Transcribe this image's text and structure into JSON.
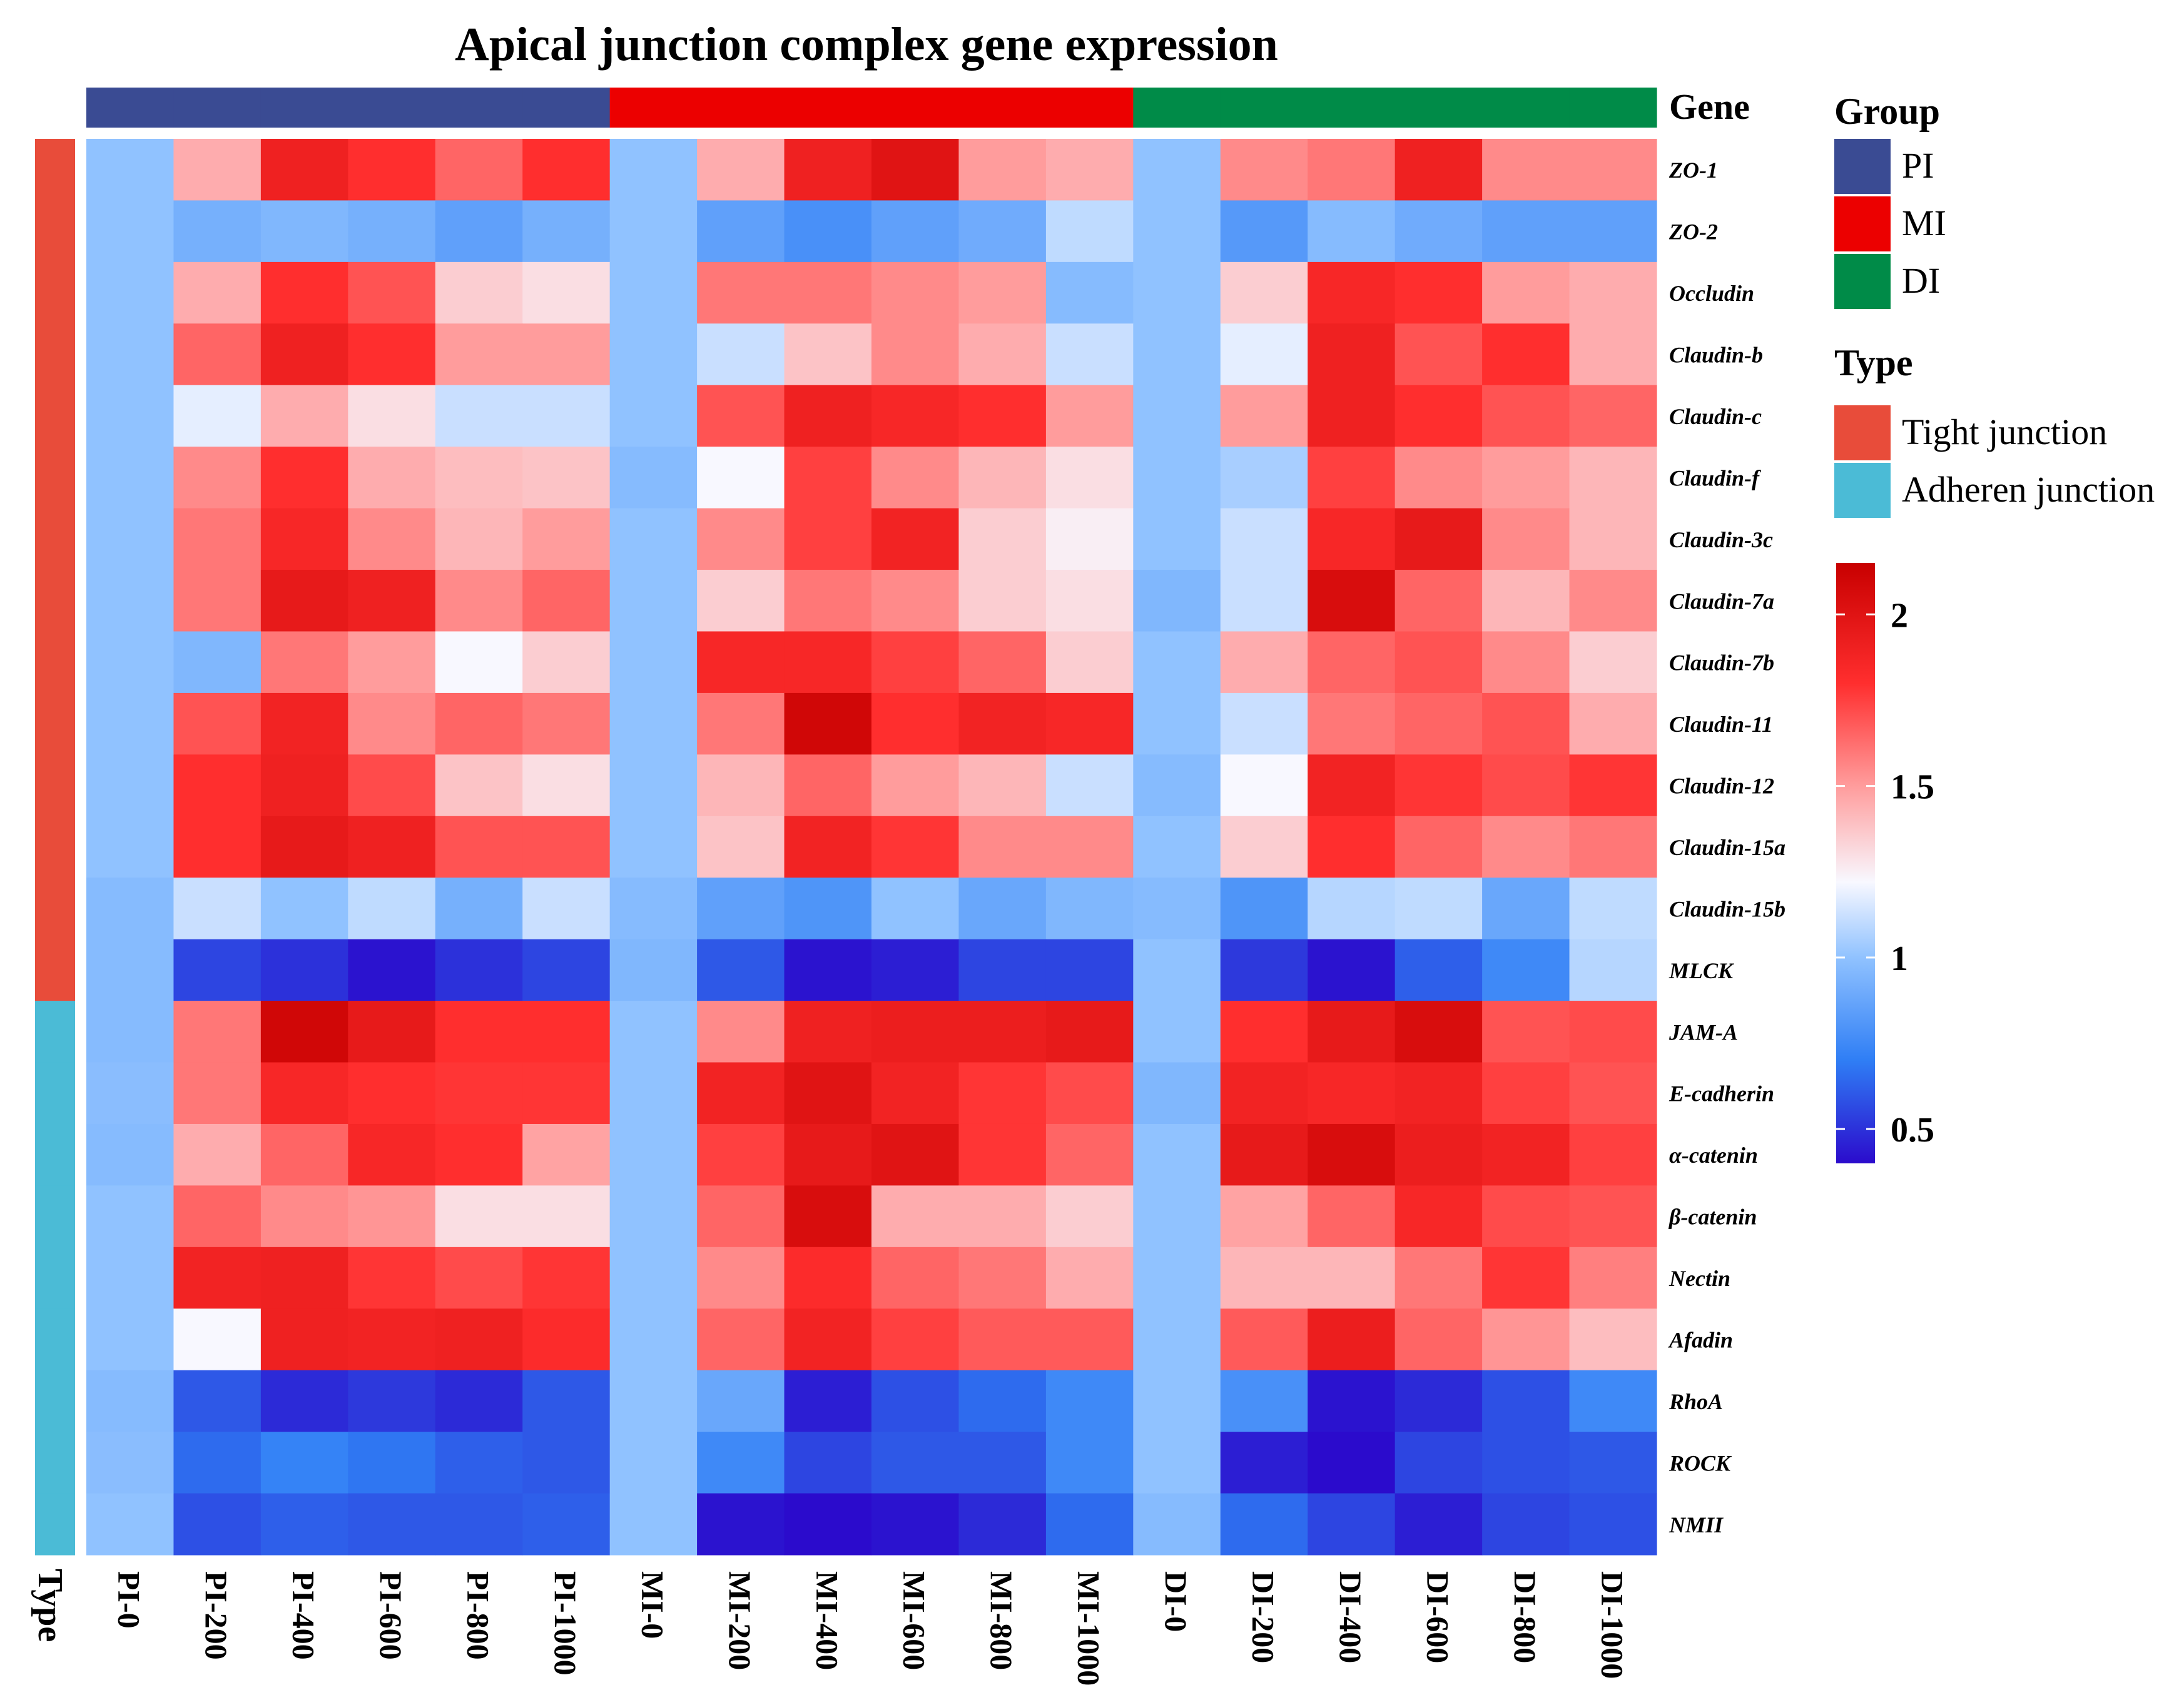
{
  "chart_data": {
    "type": "heatmap",
    "title": "Apical junction complex gene expression",
    "columns": [
      "PI-0",
      "PI-200",
      "PI-400",
      "PI-600",
      "PI-800",
      "PI-1000",
      "MI-0",
      "MI-200",
      "MI-400",
      "MI-600",
      "MI-800",
      "MI-1000",
      "DI-0",
      "DI-200",
      "DI-400",
      "DI-600",
      "DI-800",
      "DI-1000"
    ],
    "column_groups": [
      "PI",
      "PI",
      "PI",
      "PI",
      "PI",
      "PI",
      "MI",
      "MI",
      "MI",
      "MI",
      "MI",
      "MI",
      "DI",
      "DI",
      "DI",
      "DI",
      "DI",
      "DI"
    ],
    "rows": [
      "ZO-1",
      "ZO-2",
      "Occludin",
      "Claudin-b",
      "Claudin-c",
      "Claudin-f",
      "Claudin-3c",
      "Claudin-7a",
      "Claudin-7b",
      "Claudin-11",
      "Claudin-12",
      "Claudin-15a",
      "Claudin-15b",
      "MLCK",
      "JAM-A",
      "E-cadherin",
      "α-catenin",
      "β-catenin",
      "Nectin",
      "Afadin",
      "RhoA",
      "ROCK",
      "NMII"
    ],
    "row_types": [
      "Tight junction",
      "Tight junction",
      "Tight junction",
      "Tight junction",
      "Tight junction",
      "Tight junction",
      "Tight junction",
      "Tight junction",
      "Tight junction",
      "Tight junction",
      "Tight junction",
      "Tight junction",
      "Tight junction",
      "Tight junction",
      "Adheren junction",
      "Adheren junction",
      "Adheren junction",
      "Adheren junction",
      "Adheren junction",
      "Adheren junction",
      "Adheren junction",
      "Adheren junction",
      "Adheren junction"
    ],
    "values": [
      [
        1.0,
        1.45,
        1.9,
        1.8,
        1.65,
        1.8,
        1.0,
        1.45,
        1.9,
        2.0,
        1.5,
        1.45,
        1.0,
        1.55,
        1.6,
        1.9,
        1.55,
        1.55
      ],
      [
        1.0,
        0.92,
        0.95,
        0.92,
        0.85,
        0.92,
        1.0,
        0.85,
        0.78,
        0.85,
        0.9,
        1.1,
        1.0,
        0.82,
        0.97,
        0.9,
        0.85,
        0.85
      ],
      [
        1.0,
        1.45,
        1.8,
        1.7,
        1.35,
        1.3,
        1.0,
        1.6,
        1.6,
        1.55,
        1.5,
        0.97,
        1.0,
        1.35,
        1.85,
        1.8,
        1.5,
        1.45
      ],
      [
        1.0,
        1.65,
        1.9,
        1.8,
        1.5,
        1.5,
        1.0,
        1.12,
        1.38,
        1.55,
        1.45,
        1.12,
        1.0,
        1.18,
        1.9,
        1.7,
        1.8,
        1.45
      ],
      [
        1.0,
        1.18,
        1.45,
        1.3,
        1.12,
        1.12,
        1.0,
        1.7,
        1.9,
        1.85,
        1.8,
        1.5,
        1.0,
        1.5,
        1.9,
        1.8,
        1.7,
        1.65
      ],
      [
        1.0,
        1.55,
        1.8,
        1.45,
        1.4,
        1.38,
        0.97,
        1.22,
        1.75,
        1.55,
        1.42,
        1.3,
        1.0,
        1.05,
        1.75,
        1.55,
        1.5,
        1.42
      ],
      [
        1.0,
        1.6,
        1.85,
        1.55,
        1.42,
        1.5,
        1.0,
        1.55,
        1.75,
        1.88,
        1.35,
        1.25,
        1.0,
        1.12,
        1.85,
        1.95,
        1.55,
        1.42
      ],
      [
        1.0,
        1.6,
        1.95,
        1.9,
        1.55,
        1.65,
        1.0,
        1.35,
        1.6,
        1.55,
        1.35,
        1.3,
        0.95,
        1.12,
        2.05,
        1.65,
        1.42,
        1.55
      ],
      [
        1.0,
        0.95,
        1.6,
        1.5,
        1.22,
        1.35,
        1.0,
        1.85,
        1.85,
        1.75,
        1.65,
        1.35,
        1.0,
        1.45,
        1.65,
        1.7,
        1.55,
        1.35
      ],
      [
        1.0,
        1.7,
        1.88,
        1.55,
        1.65,
        1.6,
        1.0,
        1.6,
        2.1,
        1.8,
        1.88,
        1.85,
        1.0,
        1.12,
        1.6,
        1.65,
        1.7,
        1.45
      ],
      [
        1.0,
        1.8,
        1.9,
        1.72,
        1.38,
        1.3,
        1.0,
        1.42,
        1.65,
        1.5,
        1.42,
        1.12,
        0.97,
        1.22,
        1.88,
        1.78,
        1.72,
        1.78
      ],
      [
        1.0,
        1.8,
        1.95,
        1.9,
        1.7,
        1.7,
        1.0,
        1.38,
        1.88,
        1.78,
        1.55,
        1.55,
        1.0,
        1.35,
        1.8,
        1.65,
        1.55,
        1.6
      ],
      [
        0.97,
        1.12,
        1.0,
        1.1,
        0.92,
        1.12,
        0.97,
        0.85,
        0.8,
        1.0,
        0.88,
        0.95,
        0.97,
        0.8,
        1.08,
        1.1,
        0.88,
        1.1
      ],
      [
        0.97,
        0.55,
        0.5,
        0.42,
        0.5,
        0.55,
        0.95,
        0.6,
        0.42,
        0.45,
        0.55,
        0.55,
        1.0,
        0.52,
        0.42,
        0.62,
        0.75,
        1.08
      ],
      [
        0.97,
        1.6,
        2.1,
        1.95,
        1.8,
        1.8,
        1.0,
        1.55,
        1.9,
        1.92,
        1.92,
        1.95,
        1.0,
        1.8,
        1.95,
        2.05,
        1.7,
        1.72
      ],
      [
        0.98,
        1.6,
        1.85,
        1.8,
        1.78,
        1.78,
        1.0,
        1.88,
        2.0,
        1.88,
        1.78,
        1.72,
        0.95,
        1.88,
        1.85,
        1.88,
        1.75,
        1.7
      ],
      [
        0.97,
        1.45,
        1.65,
        1.85,
        1.8,
        1.48,
        1.0,
        1.75,
        1.95,
        2.0,
        1.78,
        1.65,
        1.0,
        1.95,
        2.05,
        1.92,
        1.88,
        1.75
      ],
      [
        1.0,
        1.65,
        1.55,
        1.52,
        1.3,
        1.3,
        1.0,
        1.65,
        2.05,
        1.45,
        1.45,
        1.35,
        1.0,
        1.48,
        1.65,
        1.85,
        1.72,
        1.7
      ],
      [
        1.0,
        1.88,
        1.9,
        1.78,
        1.72,
        1.78,
        1.0,
        1.55,
        1.82,
        1.65,
        1.6,
        1.45,
        1.0,
        1.42,
        1.42,
        1.6,
        1.78,
        1.58
      ],
      [
        1.0,
        1.22,
        1.9,
        1.88,
        1.9,
        1.82,
        1.0,
        1.65,
        1.88,
        1.75,
        1.68,
        1.68,
        1.0,
        1.68,
        1.92,
        1.65,
        1.52,
        1.4
      ],
      [
        0.97,
        0.6,
        0.48,
        0.52,
        0.48,
        0.6,
        1.0,
        0.88,
        0.45,
        0.58,
        0.65,
        0.75,
        1.0,
        0.78,
        0.42,
        0.48,
        0.58,
        0.75
      ],
      [
        0.98,
        0.65,
        0.72,
        0.68,
        0.62,
        0.6,
        1.0,
        0.75,
        0.55,
        0.6,
        0.6,
        0.75,
        1.0,
        0.45,
        0.35,
        0.55,
        0.58,
        0.6
      ],
      [
        1.0,
        0.58,
        0.62,
        0.6,
        0.6,
        0.62,
        1.0,
        0.42,
        0.35,
        0.42,
        0.48,
        0.65,
        0.97,
        0.65,
        0.55,
        0.45,
        0.55,
        0.58
      ]
    ],
    "color_scale": {
      "min": 0.4,
      "max": 2.15,
      "stops": [
        {
          "value": 0.4,
          "color": "#2B0BCC"
        },
        {
          "value": 0.7,
          "color": "#2F7EF5"
        },
        {
          "value": 1.0,
          "color": "#90C2FF"
        },
        {
          "value": 1.22,
          "color": "#F8F8FF"
        },
        {
          "value": 1.5,
          "color": "#FF9C9C"
        },
        {
          "value": 1.8,
          "color": "#FF2E2E"
        },
        {
          "value": 2.15,
          "color": "#C80000"
        }
      ],
      "ticks": [
        {
          "value": 0.5,
          "label": "0.5"
        },
        {
          "value": 1.0,
          "label": "1"
        },
        {
          "value": 1.5,
          "label": "1.5"
        },
        {
          "value": 2.0,
          "label": "2"
        }
      ]
    },
    "legend": {
      "annotation_label": "Gene",
      "type_axis_label": "Type",
      "group": {
        "title": "Group",
        "items": [
          {
            "label": "PI",
            "color": "#3A4B93"
          },
          {
            "label": "MI",
            "color": "#EC0000"
          },
          {
            "label": "DI",
            "color": "#008B48"
          }
        ]
      },
      "type": {
        "title": "Type",
        "items": [
          {
            "label": "Tight junction",
            "color": "#E84C3A"
          },
          {
            "label": "Adheren junction",
            "color": "#4BBBD6"
          }
        ]
      }
    }
  }
}
